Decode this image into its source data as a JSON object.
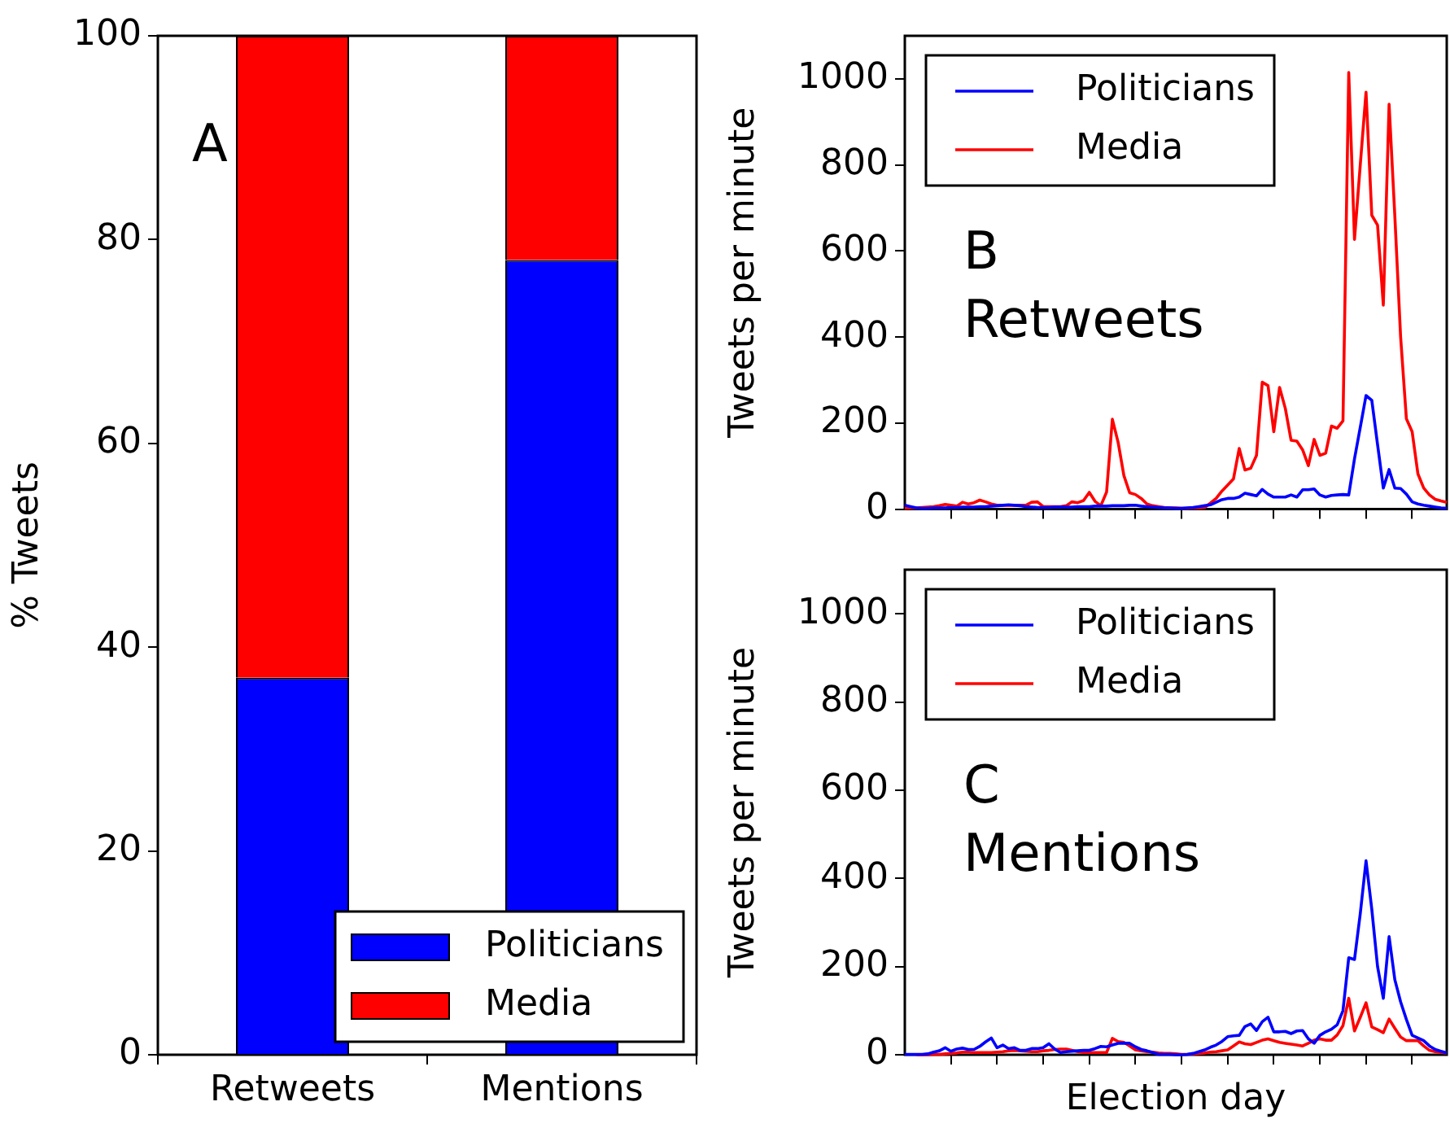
{
  "chart_data": [
    {
      "type": "bar",
      "stacked": true,
      "ylabel": "% Tweets",
      "categories": [
        "Retweets",
        "Mentions"
      ],
      "ylim": [
        0,
        100
      ],
      "yticks": [
        0,
        20,
        40,
        60,
        80,
        100
      ],
      "grid": false,
      "legend": "bottom right",
      "annotations": [
        "A"
      ],
      "series": [
        {
          "name": "Politicians",
          "color": "#0000ff",
          "values": [
            37,
            78
          ]
        },
        {
          "name": "Media",
          "color": "#ff0000",
          "values": [
            63,
            22
          ]
        }
      ]
    },
    {
      "type": "line",
      "ylabel": "Tweets per minute",
      "categories": [
        null,
        null,
        null,
        null,
        null,
        null,
        null,
        null,
        null,
        null,
        null,
        null,
        null,
        null,
        null,
        null,
        null,
        null,
        null,
        null,
        null,
        null,
        null,
        null,
        null,
        null,
        null,
        null,
        null,
        null,
        null,
        null,
        null,
        null,
        null,
        null,
        null,
        null,
        null,
        null,
        null,
        null,
        null,
        null,
        null,
        null,
        null,
        null,
        null,
        null,
        null,
        null,
        null,
        null,
        null,
        null,
        null,
        null,
        null,
        null,
        null,
        null,
        null,
        null,
        null,
        null,
        null,
        null,
        null,
        null,
        null,
        null,
        null,
        null,
        null,
        null,
        null,
        null,
        null,
        null,
        null,
        null,
        null,
        null,
        null,
        null,
        null,
        null,
        null,
        null,
        null,
        null,
        null,
        null,
        null
      ],
      "ylim": [
        0,
        1100
      ],
      "yticks": [
        0,
        200,
        400,
        600,
        800,
        1000
      ],
      "tick_labels": "y",
      "grid": false,
      "legend": "top left",
      "marker": "none",
      "line_style": "solid",
      "annotations": [
        "B",
        "Retweets"
      ],
      "series": [
        {
          "name": "Politicians",
          "color": "#0000ff",
          "values": [
            9,
            6,
            3,
            2,
            2,
            3,
            3,
            3,
            4,
            4,
            5,
            5,
            5,
            6,
            6,
            7,
            8,
            9,
            10,
            9,
            8,
            6,
            5,
            4,
            4,
            4,
            5,
            5,
            5,
            5,
            6,
            6,
            6,
            7,
            7,
            7,
            8,
            8,
            8,
            9,
            9,
            7,
            6,
            5,
            4,
            3,
            3,
            2,
            2,
            3,
            4,
            6,
            8,
            10,
            16,
            22,
            25,
            25,
            28,
            37,
            34,
            31,
            46,
            35,
            28,
            28,
            28,
            33,
            28,
            45,
            45,
            47,
            33,
            28,
            32,
            33,
            34,
            33,
            117,
            190,
            264,
            253,
            150,
            49,
            92,
            49,
            48,
            35,
            17,
            12,
            9,
            7,
            5,
            3,
            2
          ]
        },
        {
          "name": "Media",
          "color": "#ff0000",
          "values": [
            2,
            3,
            3,
            4,
            5,
            6,
            8,
            11,
            9,
            7,
            16,
            12,
            15,
            21,
            17,
            12,
            9,
            9,
            9,
            9,
            9,
            9,
            16,
            17,
            6,
            6,
            6,
            6,
            8,
            17,
            15,
            20,
            39,
            18,
            8,
            40,
            209,
            155,
            78,
            38,
            34,
            25,
            12,
            8,
            6,
            4,
            3,
            3,
            2,
            2,
            3,
            3,
            4,
            14,
            25,
            42,
            56,
            70,
            141,
            91,
            95,
            125,
            295,
            287,
            180,
            283,
            234,
            160,
            158,
            138,
            101,
            162,
            125,
            130,
            193,
            188,
            205,
            1015,
            627,
            800,
            969,
            683,
            660,
            474,
            941,
            680,
            400,
            210,
            180,
            82,
            49,
            33,
            23,
            19,
            16
          ]
        }
      ]
    },
    {
      "type": "line",
      "ylabel": "Tweets per minute",
      "xlabel": "Election day",
      "categories": [
        null,
        null,
        null,
        null,
        null,
        null,
        null,
        null,
        null,
        null,
        null,
        null,
        null,
        null,
        null,
        null,
        null,
        null,
        null,
        null,
        null,
        null,
        null,
        null,
        null,
        null,
        null,
        null,
        null,
        null,
        null,
        null,
        null,
        null,
        null,
        null,
        null,
        null,
        null,
        null,
        null,
        null,
        null,
        null,
        null,
        null,
        null,
        null,
        null,
        null,
        null,
        null,
        null,
        null,
        null,
        null,
        null,
        null,
        null,
        null,
        null,
        null,
        null,
        null,
        null,
        null,
        null,
        null,
        null,
        null,
        null,
        null,
        null,
        null,
        null,
        null,
        null,
        null,
        null,
        null,
        null,
        null,
        null,
        null,
        null,
        null,
        null,
        null,
        null,
        null,
        null,
        null,
        null,
        null,
        null
      ],
      "ylim": [
        0,
        1100
      ],
      "yticks": [
        0,
        200,
        400,
        600,
        800,
        1000
      ],
      "tick_labels": "y",
      "grid": false,
      "legend": "top left",
      "marker": "none",
      "line_style": "solid",
      "annotations": [
        "C",
        "Mentions"
      ],
      "series": [
        {
          "name": "Politicians",
          "color": "#0000ff",
          "values": [
            1,
            1,
            1,
            1,
            2,
            6,
            9,
            16,
            8,
            13,
            15,
            12,
            12,
            19,
            29,
            38,
            16,
            22,
            14,
            16,
            10,
            10,
            14,
            14,
            16,
            25,
            13,
            5,
            7,
            8,
            9,
            10,
            10,
            14,
            19,
            18,
            22,
            26,
            26,
            26,
            18,
            12,
            9,
            5,
            1,
            1,
            1,
            0,
            0,
            1,
            3,
            7,
            11,
            17,
            22,
            30,
            41,
            43,
            44,
            64,
            70,
            55,
            75,
            85,
            52,
            52,
            53,
            48,
            54,
            55,
            36,
            26,
            44,
            52,
            58,
            68,
            100,
            220,
            216,
            320,
            440,
            330,
            200,
            128,
            268,
            170,
            120,
            80,
            44,
            38,
            32,
            20,
            12,
            8,
            4
          ]
        },
        {
          "name": "Media",
          "color": "#ff0000",
          "values": [
            null,
            null,
            0,
            0,
            0,
            1,
            1,
            2,
            3,
            4,
            6,
            6,
            5,
            5,
            5,
            5,
            6,
            7,
            9,
            10,
            9,
            8,
            7,
            7,
            9,
            10,
            12,
            13,
            13,
            10,
            7,
            5,
            5,
            5,
            5,
            5,
            37,
            30,
            28,
            20,
            11,
            9,
            7,
            6,
            4,
            3,
            3,
            2,
            1,
            1,
            2,
            3,
            4,
            6,
            7,
            9,
            11,
            20,
            29,
            25,
            23,
            28,
            33,
            36,
            32,
            28,
            26,
            24,
            22,
            20,
            26,
            33,
            36,
            33,
            33,
            45,
            66,
            128,
            54,
            85,
            118,
            63,
            57,
            50,
            81,
            60,
            40,
            32,
            32,
            32,
            20,
            10,
            7,
            5,
            4
          ]
        }
      ]
    }
  ]
}
